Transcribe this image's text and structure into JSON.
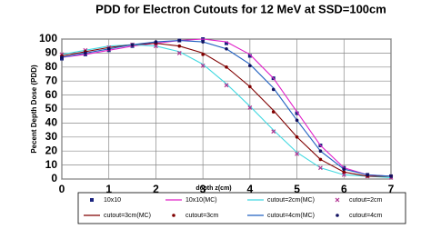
{
  "chart_data": {
    "type": "line",
    "title": "PDD for Electron Cutouts for 12 MeV at SSD=100cm",
    "x_label": "depth z(cm)",
    "y_label": "Pecent Depth Dose (PDD)",
    "x": [
      0,
      0.5,
      1,
      1.5,
      2,
      2.5,
      3,
      3.5,
      4,
      4.5,
      5,
      5.5,
      6,
      6.5,
      7
    ],
    "series": [
      {
        "name": "10x10",
        "color": "#1a237e",
        "style": "square",
        "values": [
          86,
          89,
          92,
          95,
          97,
          99,
          100,
          97,
          88,
          72,
          47,
          24,
          8,
          3,
          2
        ]
      },
      {
        "name": "10x10(MC)",
        "color": "#e020c8",
        "style": "line",
        "values": [
          87,
          89,
          92,
          95,
          97,
          99,
          100,
          98,
          89,
          72,
          48,
          24,
          8,
          3,
          2
        ]
      },
      {
        "name": "cutout=2cm(MC)",
        "color": "#40d8e0",
        "style": "line",
        "values": [
          89,
          92,
          95,
          96,
          95,
          91,
          82,
          68,
          52,
          35,
          19,
          8,
          3,
          2,
          1
        ]
      },
      {
        "name": "cutout=2cm",
        "color": "#b03090",
        "style": "x",
        "values": [
          89,
          92,
          94,
          96,
          95,
          90,
          81,
          67,
          51,
          34,
          18,
          8,
          3,
          2,
          1
        ]
      },
      {
        "name": "cutout=3cm(MC)",
        "color": "#800000",
        "style": "line",
        "values": [
          88,
          91,
          94,
          96,
          97,
          95,
          90,
          80,
          66,
          49,
          30,
          14,
          5,
          2,
          2
        ]
      },
      {
        "name": "cutout=3cm",
        "color": "#800000",
        "style": "circle",
        "values": [
          88,
          91,
          93,
          96,
          97,
          95,
          89,
          80,
          66,
          48,
          30,
          14,
          5,
          2,
          2
        ]
      },
      {
        "name": "cutout=4cm(MC)",
        "color": "#2060c0",
        "style": "line",
        "values": [
          87,
          90,
          93,
          96,
          98,
          99,
          98,
          93,
          82,
          65,
          42,
          20,
          7,
          3,
          2
        ]
      },
      {
        "name": "cutout=4cm",
        "color": "#101060",
        "style": "circle",
        "values": [
          87,
          90,
          93,
          96,
          98,
          99,
          98,
          93,
          81,
          64,
          42,
          20,
          7,
          3,
          2
        ]
      }
    ],
    "xlim": [
      0,
      7
    ],
    "xticks": [
      0,
      1,
      2,
      3,
      4,
      5,
      6,
      7
    ],
    "ylim": [
      0,
      100
    ],
    "yticks": [
      0,
      10,
      20,
      30,
      40,
      50,
      60,
      70,
      80,
      90,
      100
    ],
    "grid": true
  }
}
